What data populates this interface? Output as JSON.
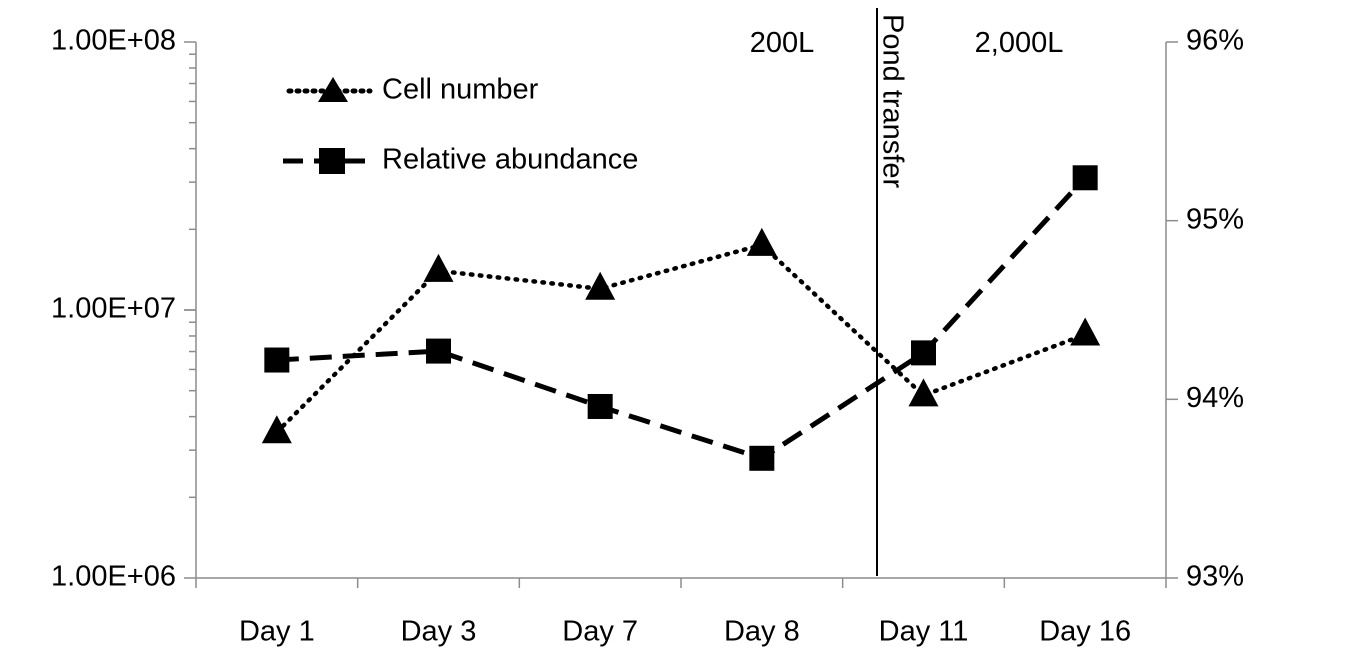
{
  "chart_data": {
    "type": "line",
    "title": "",
    "categories": [
      "Day 1",
      "Day 3",
      "Day 7",
      "Day 8",
      "Day 11",
      "Day 16"
    ],
    "series": [
      {
        "name": "Cell number",
        "axis": "left",
        "line_style": "dotted",
        "marker": "triangle",
        "values": [
          3500000,
          14000000,
          12000000,
          17500000,
          4800000,
          8100000
        ]
      },
      {
        "name": "Relative abundance",
        "axis": "right",
        "line_style": "dashed",
        "marker": "square",
        "values": [
          94.22,
          94.27,
          93.96,
          93.67,
          94.26,
          95.24
        ]
      }
    ],
    "left_axis": {
      "scale": "log",
      "min": 1000000,
      "max": 100000000,
      "tick_labels": [
        "1.00E+06",
        "1.00E+07",
        "1.00E+08"
      ]
    },
    "right_axis": {
      "scale": "linear",
      "min": 93,
      "max": 96,
      "unit": "%",
      "tick_labels": [
        "93%",
        "94%",
        "95%",
        "96%"
      ]
    },
    "annotations": {
      "divider_label": "Pond transfer",
      "divider_between": [
        "Day 8",
        "Day 11"
      ],
      "left_region_label": "200L",
      "right_region_label": "2,000L"
    },
    "legend": {
      "position": "top-left",
      "entries": [
        "Cell number",
        "Relative abundance"
      ]
    },
    "grid": false
  }
}
